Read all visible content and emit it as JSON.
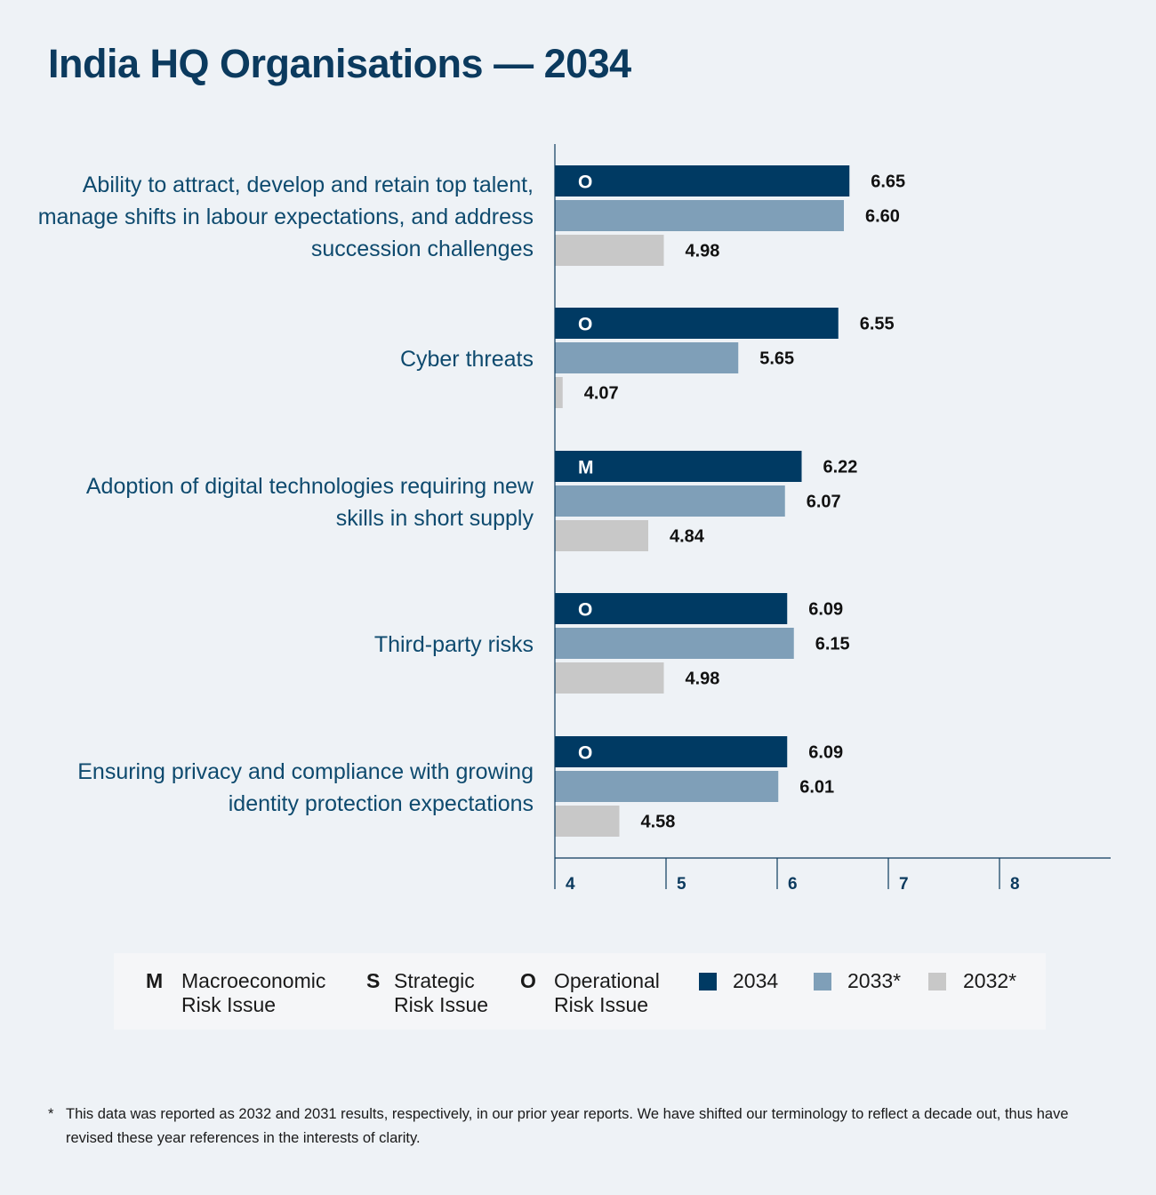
{
  "title": "India HQ Organisations — 2034",
  "chart_data": {
    "type": "bar",
    "orientation": "horizontal",
    "categories": [
      "Ability to attract, develop and retain top talent, manage shifts in labour expectations, and address succession challenges",
      "Cyber threats",
      "Adoption of digital technologies requiring new skills in short supply",
      "Third-party risks",
      "Ensuring privacy and compliance with growing identity protection expectations"
    ],
    "risk_codes": [
      "O",
      "O",
      "M",
      "O",
      "O"
    ],
    "series": [
      {
        "name": "2034",
        "color": "#003a63",
        "values": [
          6.65,
          6.55,
          6.22,
          6.09,
          6.09
        ],
        "labels": [
          "6.65",
          "6.55",
          "6.22",
          "6.09",
          "6.09"
        ]
      },
      {
        "name": "2033*",
        "color": "#7f9fb8",
        "values": [
          6.6,
          5.65,
          6.07,
          6.15,
          6.01
        ],
        "labels": [
          "6.60",
          "5.65",
          "6.07",
          "6.15",
          "6.01"
        ]
      },
      {
        "name": "2032*",
        "color": "#c8c8c8",
        "values": [
          4.98,
          4.07,
          4.84,
          4.98,
          4.58
        ],
        "labels": [
          "4.98",
          "4.07",
          "4.84",
          "4.98",
          "4.58"
        ]
      }
    ],
    "xlim": [
      4,
      9
    ],
    "xticks": [
      "4",
      "5",
      "6",
      "7",
      "8"
    ],
    "xlabel": "",
    "ylabel": "",
    "grid": false,
    "legend_position": "bottom"
  },
  "legend": {
    "codes": [
      {
        "code": "M",
        "line1": "Macroeconomic",
        "line2": "Risk Issue"
      },
      {
        "code": "S",
        "line1": "Strategic",
        "line2": "Risk Issue"
      },
      {
        "code": "O",
        "line1": "Operational",
        "line2": "Risk Issue"
      }
    ],
    "years": [
      {
        "label": "2034",
        "color": "#003a63"
      },
      {
        "label": "2033*",
        "color": "#7f9fb8"
      },
      {
        "label": "2032*",
        "color": "#c8c8c8"
      }
    ]
  },
  "footnote": {
    "marker": "*",
    "text": "This data was reported as 2032 and 2031 results, respectively, in our prior year reports. We have shifted our terminology to reflect a decade out, thus have revised these year references in the interests of clarity."
  }
}
